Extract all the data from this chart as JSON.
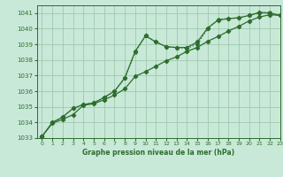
{
  "background_color": "#c8e8d8",
  "grid_color": "#a0c8b0",
  "line_color": "#2d6e2d",
  "title": "Graphe pression niveau de la mer (hPa)",
  "xlim": [
    -0.5,
    23
  ],
  "ylim": [
    1033.0,
    1041.5
  ],
  "yticks": [
    1033,
    1034,
    1035,
    1036,
    1037,
    1038,
    1039,
    1040,
    1041
  ],
  "xticks": [
    0,
    1,
    2,
    3,
    4,
    5,
    6,
    7,
    8,
    9,
    10,
    11,
    12,
    13,
    14,
    15,
    16,
    17,
    18,
    19,
    20,
    21,
    22,
    23
  ],
  "series1_x": [
    0,
    1,
    2,
    3,
    4,
    5,
    6,
    7,
    8,
    9,
    10,
    11,
    12,
    13,
    14,
    15,
    16,
    17,
    18,
    19,
    20,
    21,
    22,
    23
  ],
  "series1_y": [
    1033.1,
    1034.0,
    1034.35,
    1034.9,
    1035.15,
    1035.25,
    1035.6,
    1036.0,
    1036.85,
    1038.55,
    1039.55,
    1039.15,
    1038.85,
    1038.8,
    1038.8,
    1039.15,
    1040.05,
    1040.55,
    1040.65,
    1040.7,
    1040.85,
    1041.05,
    1041.0,
    1040.85
  ],
  "series2_x": [
    0,
    1,
    2,
    3,
    4,
    5,
    6,
    7,
    8,
    9,
    10,
    11,
    12,
    13,
    14,
    15,
    16,
    17,
    18,
    19,
    20,
    21,
    22,
    23
  ],
  "series2_y": [
    1033.1,
    1033.95,
    1034.2,
    1034.5,
    1035.1,
    1035.2,
    1035.45,
    1035.75,
    1036.15,
    1036.95,
    1037.25,
    1037.6,
    1037.95,
    1038.2,
    1038.55,
    1038.8,
    1039.2,
    1039.5,
    1039.85,
    1040.15,
    1040.5,
    1040.75,
    1040.9,
    1040.85
  ],
  "series3_x": [
    0,
    1,
    2,
    3,
    4,
    5,
    6,
    7,
    8,
    9,
    10,
    11,
    12,
    13,
    14,
    15,
    16,
    17,
    18,
    19,
    20,
    21,
    22,
    23
  ],
  "series3_y": [
    1033.1,
    1034.0,
    1034.35,
    1034.9,
    1035.15,
    1035.25,
    1035.6,
    1036.0,
    1036.85,
    1038.5,
    1039.55,
    1039.15,
    1038.85,
    1038.8,
    1038.75,
    1039.0,
    1040.0,
    1040.6,
    1040.65,
    1040.7,
    1040.85,
    1041.0,
    1041.05,
    1040.85
  ]
}
